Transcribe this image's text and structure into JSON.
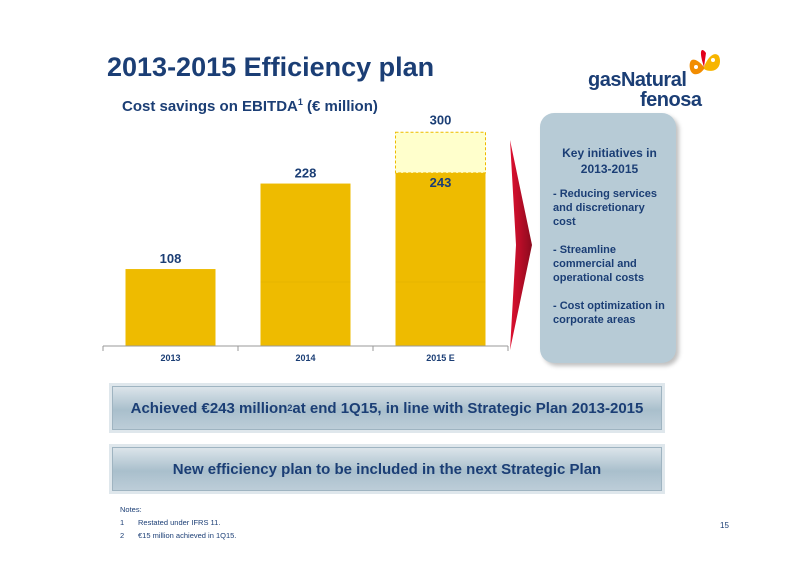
{
  "title": "2013-2015 Efficiency plan",
  "logo": {
    "line1": "gasNatural",
    "line2": "fenosa"
  },
  "subtitle": {
    "text": "Cost savings on EBITDA",
    "sup": "1",
    "suffix": " (€ million)"
  },
  "chart_data": {
    "type": "bar",
    "categories": [
      "2013",
      "2014",
      "2015 E"
    ],
    "values": [
      108,
      228,
      243
    ],
    "target": {
      "category": "2015 E",
      "value": 300
    },
    "data_labels": [
      "108",
      "228",
      "243"
    ],
    "target_label": "300",
    "ylim": [
      0,
      320
    ],
    "grid": false,
    "bar_color": "#eebb00",
    "target_fill": "#ffffcc",
    "target_border": "#eebb00"
  },
  "initiatives": {
    "title": "Key initiatives in 2013-2015",
    "items": [
      "- Reducing services and discretionary cost",
      "- Streamline commercial and operational costs",
      "- Cost optimization in corporate areas"
    ]
  },
  "banner1": {
    "text": "Achieved €243 million",
    "sup": "2",
    "suffix": " at end 1Q15, in line with Strategic Plan 2013-2015"
  },
  "banner2": {
    "text": "New efficiency plan to be included in the next Strategic Plan"
  },
  "notes": {
    "heading": "Notes:",
    "items": [
      {
        "num": "1",
        "text": "Restated under IFRS 11."
      },
      {
        "num": "2",
        "text": "€15 million achieved in  1Q15."
      }
    ]
  },
  "page_number": "15",
  "colors": {
    "navy": "#1b3e75",
    "arrow": "#c0102c",
    "box": "#b7cbd6"
  }
}
